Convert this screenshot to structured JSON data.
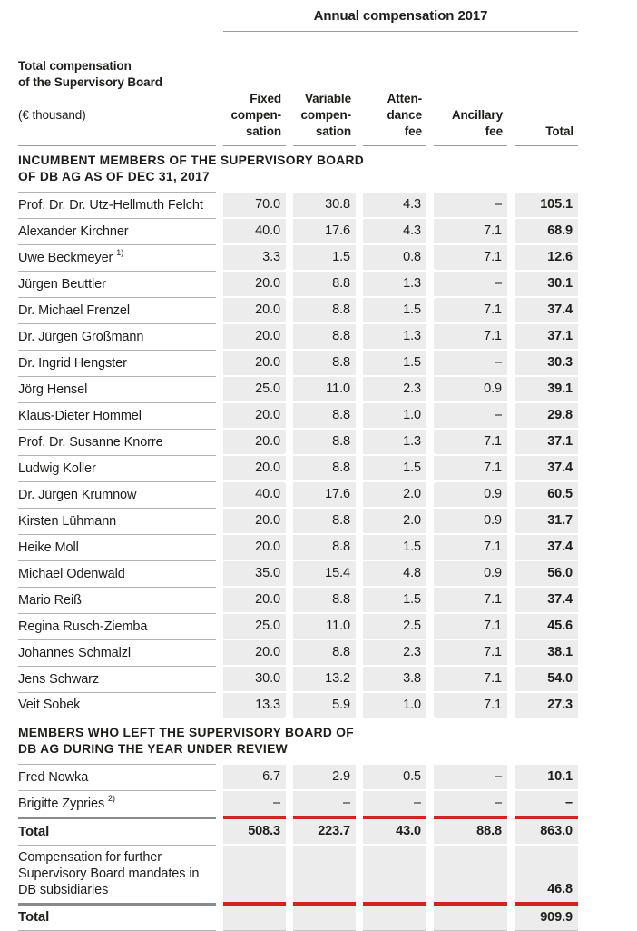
{
  "title": "Annual compensation 2017",
  "left_header": {
    "bold": "Total compensation\nof the Supervisory Board",
    "unit": "(€ thousand)"
  },
  "columns": [
    "Fixed\ncompen-\nsation",
    "Variable\ncompen-\nsation",
    "Atten-\ndance\nfee",
    "Ancillary\nfee",
    "Total"
  ],
  "body": [
    {
      "type": "heading",
      "text": "INCUMBENT MEMBERS OF THE SUPERVISORY BOARD\nOF DB AG AS OF DEC 31, 2017"
    },
    {
      "type": "row",
      "name": "Prof. Dr. Dr. Utz-Hellmuth Felcht",
      "values": [
        "70.0",
        "30.8",
        "4.3",
        "–",
        "105.1"
      ]
    },
    {
      "type": "row",
      "name": "Alexander Kirchner",
      "values": [
        "40.0",
        "17.6",
        "4.3",
        "7.1",
        "68.9"
      ]
    },
    {
      "type": "row",
      "name": "Uwe Beckmeyer",
      "note": "1)",
      "values": [
        "3.3",
        "1.5",
        "0.8",
        "7.1",
        "12.6"
      ]
    },
    {
      "type": "row",
      "name": "Jürgen Beuttler",
      "values": [
        "20.0",
        "8.8",
        "1.3",
        "–",
        "30.1"
      ]
    },
    {
      "type": "row",
      "name": "Dr. Michael Frenzel",
      "values": [
        "20.0",
        "8.8",
        "1.5",
        "7.1",
        "37.4"
      ]
    },
    {
      "type": "row",
      "name": "Dr. Jürgen Großmann",
      "values": [
        "20.0",
        "8.8",
        "1.3",
        "7.1",
        "37.1"
      ]
    },
    {
      "type": "row",
      "name": "Dr. Ingrid Hengster",
      "values": [
        "20.0",
        "8.8",
        "1.5",
        "–",
        "30.3"
      ]
    },
    {
      "type": "row",
      "name": "Jörg Hensel",
      "values": [
        "25.0",
        "11.0",
        "2.3",
        "0.9",
        "39.1"
      ]
    },
    {
      "type": "row",
      "name": "Klaus-Dieter Hommel",
      "values": [
        "20.0",
        "8.8",
        "1.0",
        "–",
        "29.8"
      ]
    },
    {
      "type": "row",
      "name": "Prof. Dr. Susanne Knorre",
      "values": [
        "20.0",
        "8.8",
        "1.3",
        "7.1",
        "37.1"
      ]
    },
    {
      "type": "row",
      "name": "Ludwig Koller",
      "values": [
        "20.0",
        "8.8",
        "1.5",
        "7.1",
        "37.4"
      ]
    },
    {
      "type": "row",
      "name": "Dr. Jürgen Krumnow",
      "values": [
        "40.0",
        "17.6",
        "2.0",
        "0.9",
        "60.5"
      ]
    },
    {
      "type": "row",
      "name": "Kirsten Lühmann",
      "values": [
        "20.0",
        "8.8",
        "2.0",
        "0.9",
        "31.7"
      ]
    },
    {
      "type": "row",
      "name": "Heike Moll",
      "values": [
        "20.0",
        "8.8",
        "1.5",
        "7.1",
        "37.4"
      ]
    },
    {
      "type": "row",
      "name": "Michael Odenwald",
      "values": [
        "35.0",
        "15.4",
        "4.8",
        "0.9",
        "56.0"
      ]
    },
    {
      "type": "row",
      "name": "Mario Reiß",
      "values": [
        "20.0",
        "8.8",
        "1.5",
        "7.1",
        "37.4"
      ]
    },
    {
      "type": "row",
      "name": "Regina Rusch-Ziemba",
      "values": [
        "25.0",
        "11.0",
        "2.5",
        "7.1",
        "45.6"
      ]
    },
    {
      "type": "row",
      "name": "Johannes Schmalzl",
      "values": [
        "20.0",
        "8.8",
        "2.3",
        "7.1",
        "38.1"
      ]
    },
    {
      "type": "row",
      "name": "Jens Schwarz",
      "values": [
        "30.0",
        "13.2",
        "3.8",
        "7.1",
        "54.0"
      ]
    },
    {
      "type": "row",
      "name": "Veit Sobek",
      "values": [
        "13.3",
        "5.9",
        "1.0",
        "7.1",
        "27.3"
      ]
    },
    {
      "type": "heading",
      "text": "MEMBERS WHO LEFT THE SUPERVISORY BOARD OF\nDB AG DURING THE YEAR UNDER REVIEW"
    },
    {
      "type": "row",
      "name": "Fred Nowka",
      "values": [
        "6.7",
        "2.9",
        "0.5",
        "–",
        "10.1"
      ]
    },
    {
      "type": "row",
      "name": "Brigitte Zypries",
      "note": "2)",
      "values": [
        "–",
        "–",
        "–",
        "–",
        "–"
      ]
    },
    {
      "type": "total",
      "name": "Total",
      "values": [
        "508.3",
        "223.7",
        "43.0",
        "88.8",
        "863.0"
      ]
    },
    {
      "type": "row",
      "name": "Compensation for further Supervisory Board mandates in DB subsidiaries",
      "values": [
        "",
        "",
        "",
        "",
        "46.8"
      ]
    },
    {
      "type": "total",
      "name": "Total",
      "values": [
        "",
        "",
        "",
        "",
        "909.9"
      ],
      "last": true
    }
  ],
  "colors": {
    "accent_red": "#d0241f",
    "band_background": "#ececec",
    "text": "#1d1d1b",
    "row_separator": "#b1b1b1",
    "total_rule_gray": "#8a8a8a"
  }
}
